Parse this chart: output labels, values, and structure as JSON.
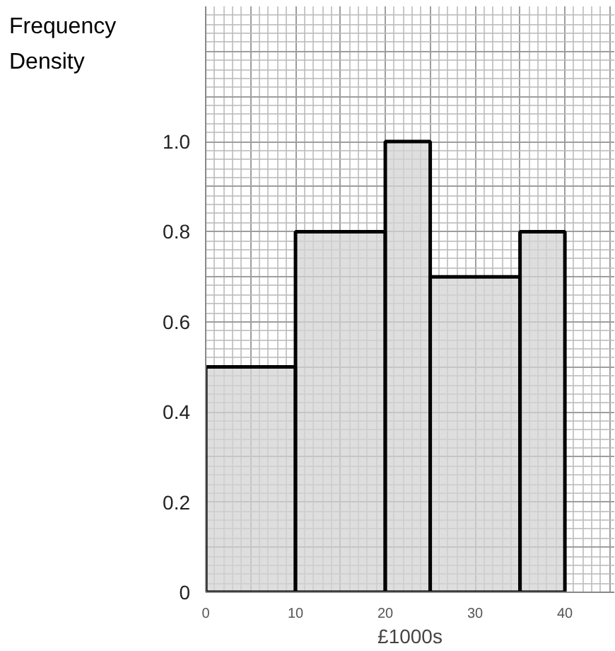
{
  "chart_data": {
    "type": "histogram",
    "xlabel": "£1000s",
    "ylabel": "Frequency Density",
    "bins": [
      0,
      10,
      20,
      25,
      35,
      40
    ],
    "values": [
      0.5,
      0.8,
      1.0,
      0.7,
      0.8
    ],
    "color": "#d3d3d3",
    "xlim": [
      0,
      45.5
    ],
    "ylim": [
      0,
      1.3
    ],
    "xticks": [
      0,
      10,
      20,
      30,
      40
    ],
    "yticks": [
      {
        "value": 0,
        "label": "0"
      },
      {
        "value": 0.2,
        "label": "0.2"
      },
      {
        "value": 0.4,
        "label": "0.4"
      },
      {
        "value": 0.6,
        "label": "0.6"
      },
      {
        "value": 0.8,
        "label": "0.8"
      },
      {
        "value": 1.0,
        "label": "1.0"
      }
    ],
    "grid": true
  }
}
